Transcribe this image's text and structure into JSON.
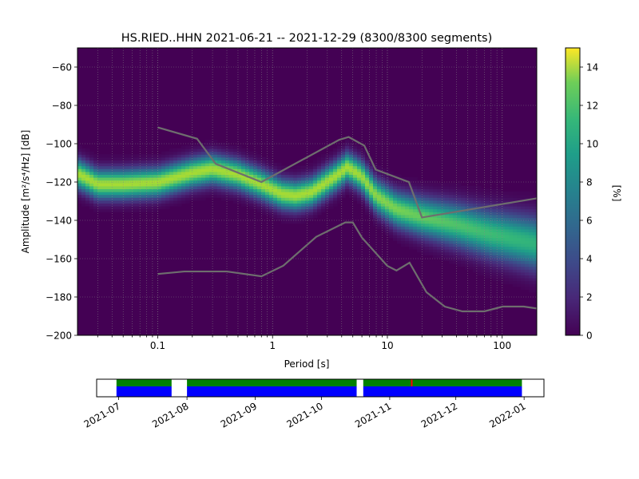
{
  "chart_data": [
    {
      "type": "heatmap",
      "title": "HS.RIED..HHN   2021-06-21 -- 2021-12-29  (8300/8300 segments)",
      "xlabel": "Period [s]",
      "ylabel": "Amplitude [m²/s⁴/Hz] [dB]",
      "x_scale": "log",
      "xlim": [
        0.02,
        200
      ],
      "ylim": [
        -200,
        -50
      ],
      "x_tick_labels": [
        "0.1",
        "1",
        "10",
        "100"
      ],
      "x_ticks": [
        0.1,
        1,
        10,
        100
      ],
      "y_ticks": [
        -60,
        -80,
        -100,
        -120,
        -140,
        -160,
        -180,
        -200
      ],
      "y_tick_labels": [
        "−60",
        "−80",
        "−100",
        "−120",
        "−140",
        "−160",
        "−180",
        "−200"
      ],
      "grid": true,
      "colormap": "viridis",
      "colorbar": {
        "label": "[%]",
        "range": [
          0,
          15
        ],
        "ticks": [
          0,
          2,
          4,
          6,
          8,
          10,
          12,
          14
        ],
        "tick_labels": [
          "0",
          "2",
          "4",
          "6",
          "8",
          "10",
          "12",
          "14"
        ]
      },
      "mode_curve": [
        {
          "x": 0.021,
          "y": -116
        },
        {
          "x": 0.03,
          "y": -121
        },
        {
          "x": 0.05,
          "y": -121
        },
        {
          "x": 0.1,
          "y": -120
        },
        {
          "x": 0.2,
          "y": -115
        },
        {
          "x": 0.3,
          "y": -113
        },
        {
          "x": 0.5,
          "y": -116
        },
        {
          "x": 0.8,
          "y": -121
        },
        {
          "x": 1.2,
          "y": -126
        },
        {
          "x": 1.6,
          "y": -127
        },
        {
          "x": 2.2,
          "y": -125
        },
        {
          "x": 3.5,
          "y": -117
        },
        {
          "x": 4.5,
          "y": -112
        },
        {
          "x": 6,
          "y": -117
        },
        {
          "x": 8,
          "y": -127
        },
        {
          "x": 12,
          "y": -134
        },
        {
          "x": 20,
          "y": -138
        },
        {
          "x": 40,
          "y": -142
        },
        {
          "x": 80,
          "y": -147
        },
        {
          "x": 200,
          "y": -152
        }
      ],
      "nhnm_curve": [
        {
          "x": 0.1,
          "y": -91.5
        },
        {
          "x": 0.22,
          "y": -97.4
        },
        {
          "x": 0.32,
          "y": -110.5
        },
        {
          "x": 0.8,
          "y": -120
        },
        {
          "x": 3.8,
          "y": -98
        },
        {
          "x": 4.6,
          "y": -96.5
        },
        {
          "x": 6.3,
          "y": -101
        },
        {
          "x": 7.9,
          "y": -113.5
        },
        {
          "x": 15.4,
          "y": -120
        },
        {
          "x": 20,
          "y": -138.5
        },
        {
          "x": 200,
          "y": -128.5
        }
      ],
      "nlnm_curve": [
        {
          "x": 0.1,
          "y": -168
        },
        {
          "x": 0.17,
          "y": -166.7
        },
        {
          "x": 0.4,
          "y": -166.7
        },
        {
          "x": 0.8,
          "y": -169.2
        },
        {
          "x": 1.24,
          "y": -163.7
        },
        {
          "x": 2.4,
          "y": -148.6
        },
        {
          "x": 4.3,
          "y": -141.1
        },
        {
          "x": 5.0,
          "y": -141.1
        },
        {
          "x": 6.0,
          "y": -149
        },
        {
          "x": 10,
          "y": -163.8
        },
        {
          "x": 12,
          "y": -166.2
        },
        {
          "x": 15.6,
          "y": -162.1
        },
        {
          "x": 21.9,
          "y": -177.5
        },
        {
          "x": 31.6,
          "y": -185
        },
        {
          "x": 45,
          "y": -187.5
        },
        {
          "x": 70,
          "y": -187.5
        },
        {
          "x": 101,
          "y": -185
        },
        {
          "x": 154,
          "y": -185
        },
        {
          "x": 200,
          "y": -186
        }
      ]
    },
    {
      "type": "timeline",
      "x_tick_labels": [
        "2021-07",
        "2021-08",
        "2021-09",
        "2021-10",
        "2021-11",
        "2021-12",
        "2022-01"
      ],
      "x_ticks": [
        "2021-07-01",
        "2021-08-01",
        "2021-09-01",
        "2021-10-01",
        "2021-11-01",
        "2021-12-01",
        "2022-01-01"
      ],
      "xlim": [
        "2021-06-21",
        "2022-01-10"
      ],
      "segments": [
        {
          "start": "2021-06-30",
          "end": "2021-07-25"
        },
        {
          "start": "2021-08-01",
          "end": "2021-10-17"
        },
        {
          "start": "2021-10-20",
          "end": "2021-12-31"
        }
      ],
      "flags": [
        "2021-11-11"
      ],
      "colors": {
        "data": "#0000ff",
        "processed": "#008000",
        "flag": "#ff0000"
      }
    }
  ]
}
